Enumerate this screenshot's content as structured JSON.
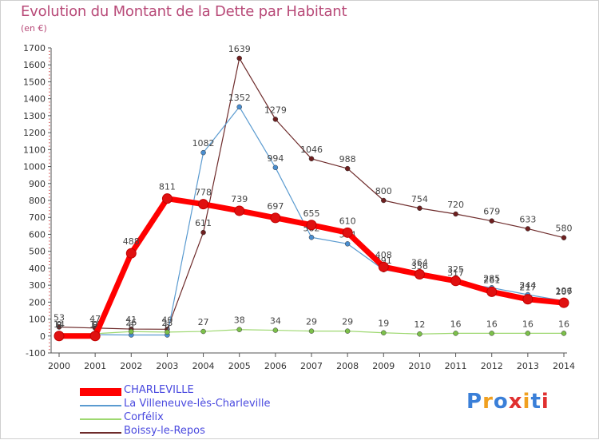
{
  "title": "Evolution du Montant de la Dette par Habitant",
  "subtitle": "(en €)",
  "logo": {
    "text": "Proxiti",
    "colors": [
      "#3a7fd8",
      "#f0a020",
      "#3a7fd8",
      "#e03030",
      "#f0a020",
      "#3a7fd8",
      "#e03030"
    ]
  },
  "chart_data": {
    "type": "line",
    "x": [
      "2000",
      "2001",
      "2002",
      "2003",
      "2004",
      "2005",
      "2006",
      "2007",
      "2008",
      "2009",
      "2010",
      "2011",
      "2012",
      "2013",
      "2014"
    ],
    "ylim": [
      -100,
      1700
    ],
    "yticks": [
      -100,
      0,
      100,
      200,
      300,
      400,
      500,
      600,
      700,
      800,
      900,
      1000,
      1100,
      1200,
      1300,
      1400,
      1500,
      1600,
      1700
    ],
    "grid": false,
    "legend_position": "bottom-left",
    "series": [
      {
        "name": "Boissy-le-Repos",
        "color": "#6e2b2b",
        "marker": "#6e1f1f",
        "width": 1.2,
        "radius": 3,
        "values": [
          53,
          47,
          41,
          40,
          611,
          1639,
          1279,
          1046,
          988,
          800,
          754,
          720,
          679,
          633,
          580
        ]
      },
      {
        "name": "La Villeneuve-lès-Charleville",
        "color": "#5b9bd0",
        "marker": "#4a8ed0",
        "width": 1.2,
        "radius": 3,
        "values": [
          8,
          8,
          6,
          6,
          1082,
          1352,
          994,
          582,
          544,
          391,
          356,
          317,
          285,
          244,
          207
        ]
      },
      {
        "name": "Corfélix",
        "color": "#9ed870",
        "marker": "#7cc04a",
        "width": 1.2,
        "radius": 3,
        "values": [
          14,
          14,
          26,
          23,
          27,
          38,
          34,
          29,
          29,
          19,
          12,
          16,
          16,
          16,
          16
        ]
      },
      {
        "name": "CHARLEVILLE",
        "color": "#ff0000",
        "marker": "#e01010",
        "width": 7,
        "radius": 6,
        "values": [
          0,
          0,
          488,
          811,
          778,
          739,
          697,
          655,
          610,
          408,
          364,
          325,
          261,
          217,
          196
        ]
      }
    ],
    "legend_order": [
      "CHARLEVILLE",
      "La Villeneuve-lès-Charleville",
      "Corfélix",
      "Boissy-le-Repos"
    ]
  }
}
